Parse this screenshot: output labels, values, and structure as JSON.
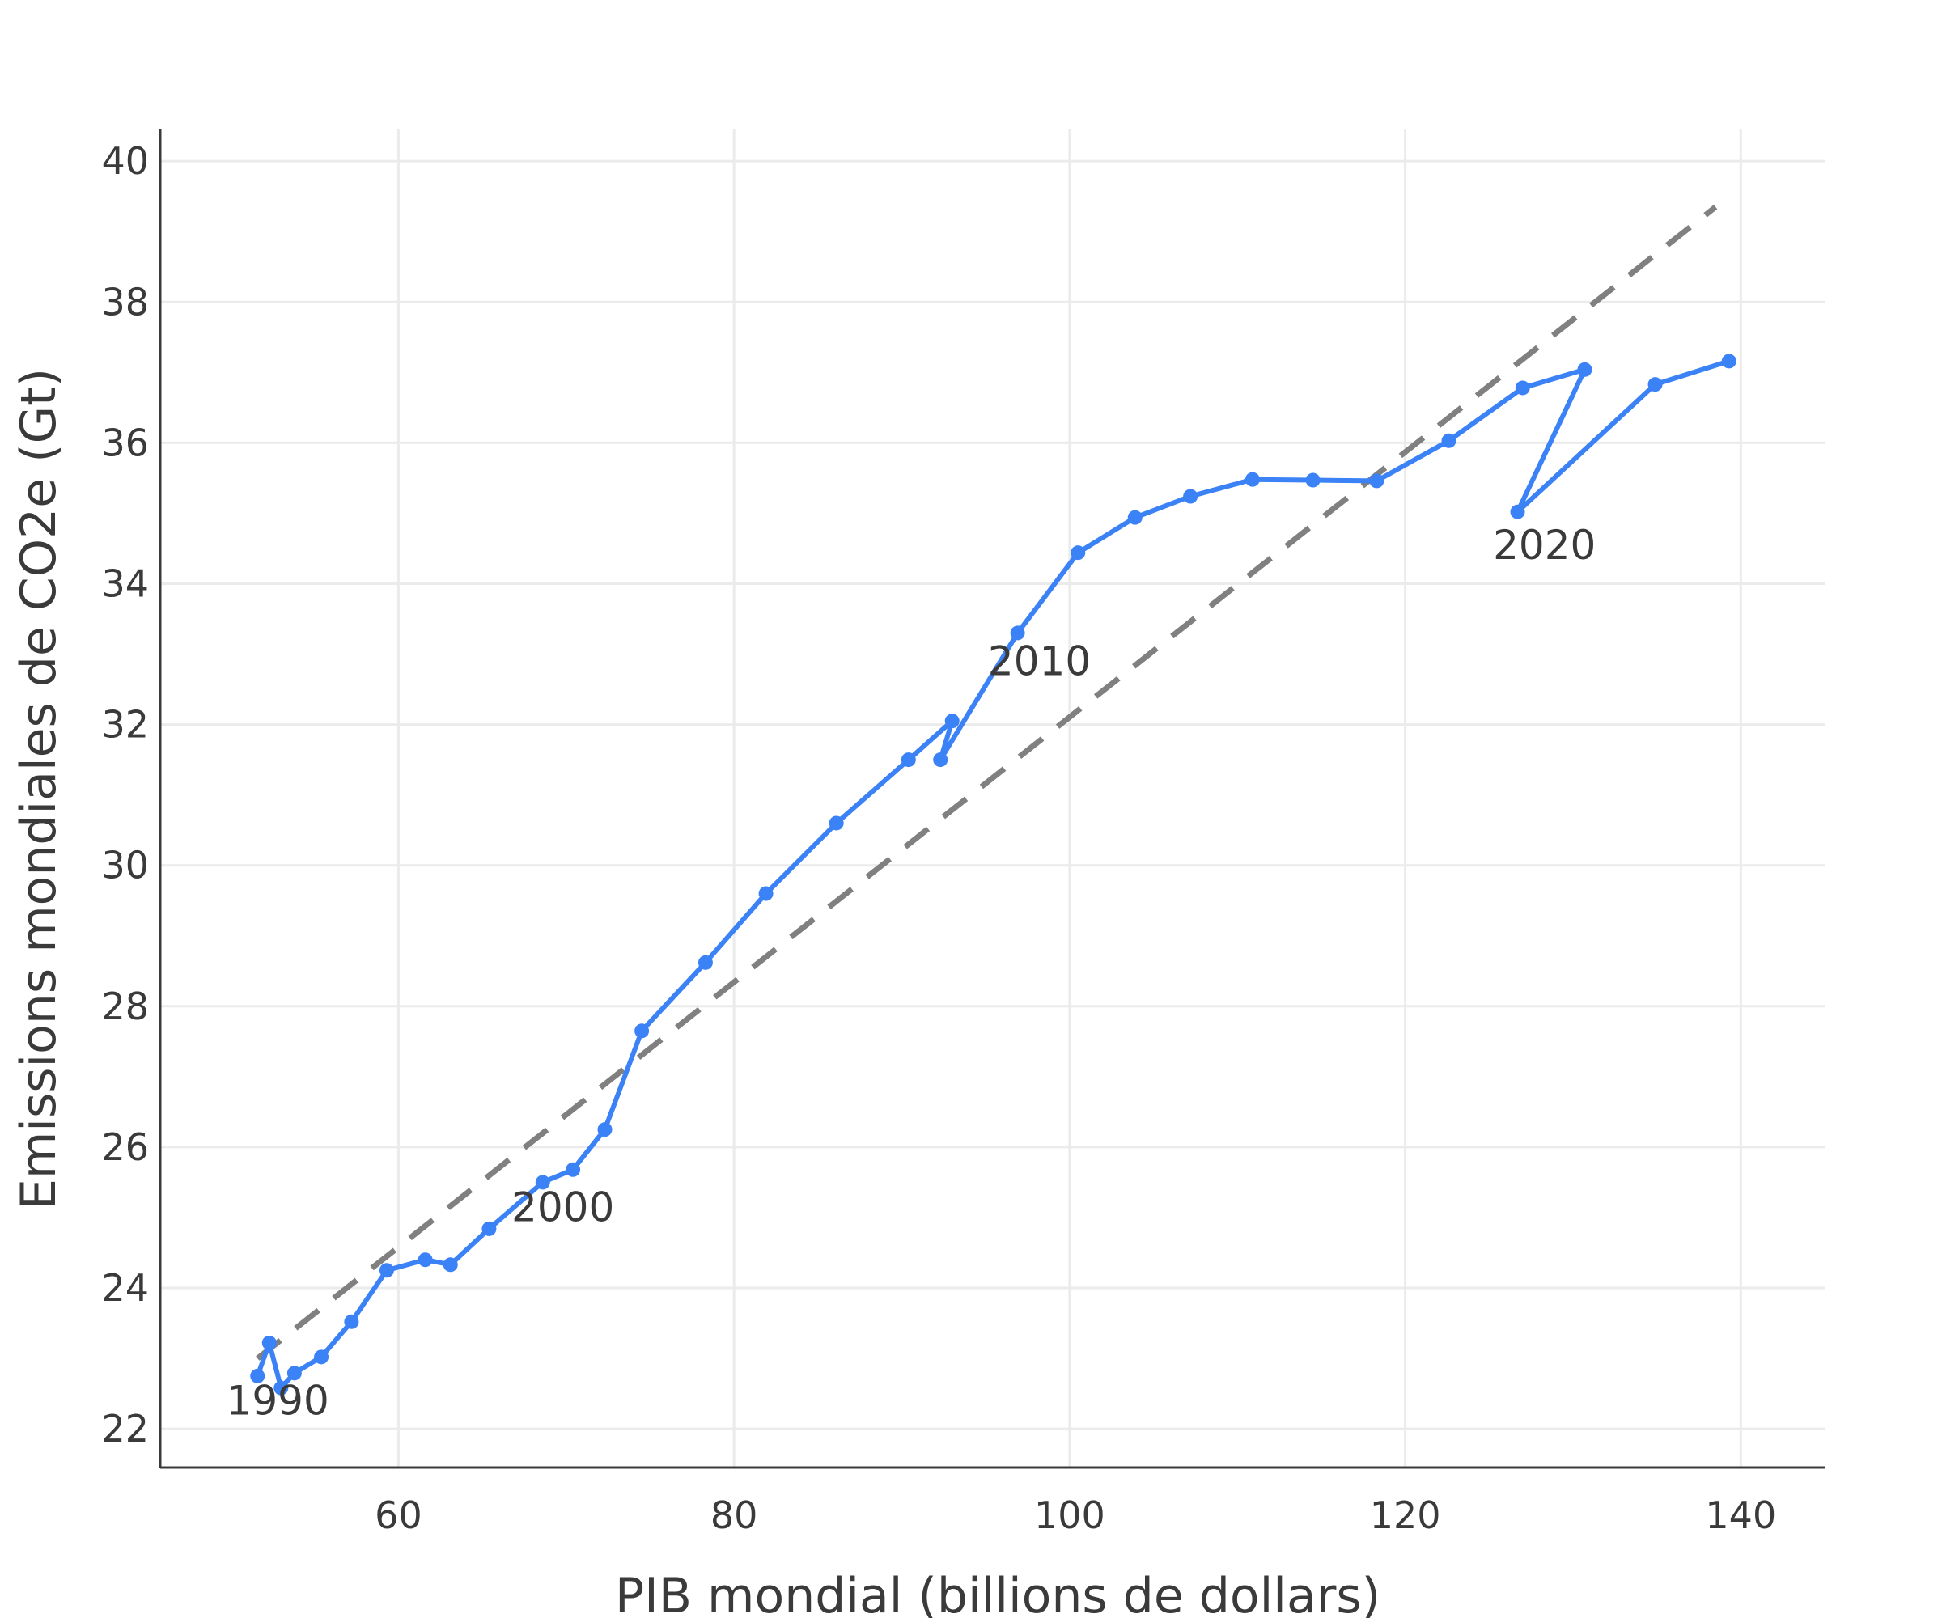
{
  "chart_data": {
    "type": "line",
    "title": "",
    "xlabel": "PIB mondial (billions de dollars)",
    "ylabel": "Emissions mondiales de CO2e (Gt)",
    "xlim": [
      45.8,
      145.0
    ],
    "ylim": [
      21.45,
      40.45
    ],
    "xticks": [
      60,
      80,
      100,
      120,
      140
    ],
    "yticks": [
      22,
      24,
      26,
      28,
      30,
      32,
      34,
      36,
      38,
      40
    ],
    "grid": true,
    "legend": "none",
    "colors": {
      "series": "#3b82f6",
      "trend": "#808080",
      "grid": "#ebebeb",
      "axis": "#3a3a3a",
      "text": "#3a3a3a"
    },
    "series": [
      {
        "style": "lines+markers",
        "points": [
          [
            51.6,
            22.75
          ],
          [
            52.3,
            23.22
          ],
          [
            53.0,
            22.58
          ],
          [
            53.8,
            22.79
          ],
          [
            55.4,
            23.02
          ],
          [
            57.2,
            23.52
          ],
          [
            59.3,
            24.25
          ],
          [
            61.6,
            24.4
          ],
          [
            63.1,
            24.33
          ],
          [
            65.4,
            24.84
          ],
          [
            68.6,
            25.5
          ],
          [
            70.4,
            25.68
          ],
          [
            72.3,
            26.25
          ],
          [
            74.5,
            27.65
          ],
          [
            78.3,
            28.62
          ],
          [
            81.9,
            29.6
          ],
          [
            86.1,
            30.6
          ],
          [
            90.4,
            31.5
          ],
          [
            93.0,
            32.05
          ],
          [
            92.3,
            31.5
          ],
          [
            96.9,
            33.3
          ],
          [
            100.5,
            34.44
          ],
          [
            103.9,
            34.94
          ],
          [
            107.2,
            35.24
          ],
          [
            110.9,
            35.48
          ],
          [
            114.5,
            35.47
          ],
          [
            118.3,
            35.46
          ],
          [
            122.6,
            36.03
          ],
          [
            127.0,
            36.78
          ],
          [
            130.7,
            37.04
          ],
          [
            126.7,
            35.02
          ],
          [
            134.9,
            36.83
          ],
          [
            139.3,
            37.16
          ]
        ]
      },
      {
        "style": "dashed-trend",
        "points": [
          [
            51.6,
            23.0
          ],
          [
            138.5,
            39.35
          ]
        ]
      }
    ],
    "annotations": [
      {
        "text": "1990",
        "x": 52.8,
        "y": 22.2
      },
      {
        "text": "2000",
        "x": 69.8,
        "y": 24.95
      },
      {
        "text": "2010",
        "x": 98.2,
        "y": 32.7
      },
      {
        "text": "2020",
        "x": 128.3,
        "y": 34.35
      }
    ]
  }
}
